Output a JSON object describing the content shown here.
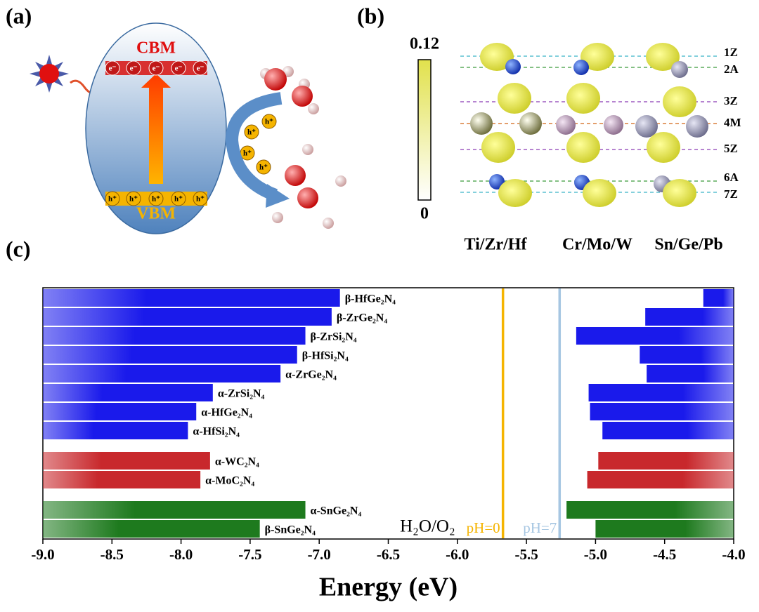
{
  "panel_a": {
    "label": "(a)",
    "cbm": "CBM",
    "vbm": "VBM",
    "electron": "e⁻",
    "hole": "h⁺"
  },
  "panel_b": {
    "label": "(b)",
    "colorbar_max": "0.12",
    "colorbar_min": "0",
    "layers": [
      "1Z",
      "2A",
      "3Z",
      "4M",
      "5Z",
      "6A",
      "7Z"
    ],
    "columns": [
      "Ti/Zr/Hf",
      "Cr/Mo/W",
      "Sn/Ge/Pb"
    ]
  },
  "chart_data": {
    "type": "range_bar",
    "panel_label": "(c)",
    "xlabel": "Energy (eV)",
    "categories": [
      "β-HfGe₂N₄",
      "β-ZrGe₂N₄",
      "β-ZrSi₂N₄",
      "β-HfSi₂N₄",
      "α-ZrGe₂N₄",
      "α-ZrSi₂N₄",
      "α-HfGe₂N₄",
      "α-HfSi₂N₄",
      "α-WC₂N₄",
      "α-MoC₂N₄",
      "α-SnGe₂N₄",
      "β-SnGe₂N₄"
    ],
    "vbm": [
      -6.85,
      -6.91,
      -7.1,
      -7.16,
      -7.28,
      -7.77,
      -7.89,
      -7.95,
      -7.79,
      -7.86,
      -7.1,
      -7.43
    ],
    "cbm": [
      -4.22,
      -4.64,
      -5.14,
      -4.68,
      -4.63,
      -5.05,
      -5.04,
      -4.95,
      -4.98,
      -5.06,
      -5.21,
      -5.0
    ],
    "colors": [
      "#1a1aeb",
      "#1a1aeb",
      "#1a1aeb",
      "#1a1aeb",
      "#1a1aeb",
      "#1a1aeb",
      "#1a1aeb",
      "#1a1aeb",
      "#c8282c",
      "#c8282c",
      "#1e7a1e",
      "#1e7a1e"
    ],
    "reference_lines": [
      {
        "value": -5.67,
        "label": "pH=0",
        "color": "#f5b400"
      },
      {
        "value": -5.26,
        "label": "pH=7",
        "color": "#a6c6e2"
      }
    ],
    "annotation": "H₂O/O₂",
    "xlim": [
      -9,
      -4
    ],
    "xticks": [
      {
        "value": -9,
        "label": "-9.0"
      },
      -8.5,
      {
        "value": -8,
        "label": "-8.0"
      },
      -7.5,
      {
        "value": -7,
        "label": "-7.0"
      },
      -6.5,
      {
        "value": -6,
        "label": "-6.0"
      },
      -5.5,
      {
        "value": -5,
        "label": "-5.0"
      },
      -4.5,
      {
        "value": -4,
        "label": "-4.0"
      }
    ]
  }
}
